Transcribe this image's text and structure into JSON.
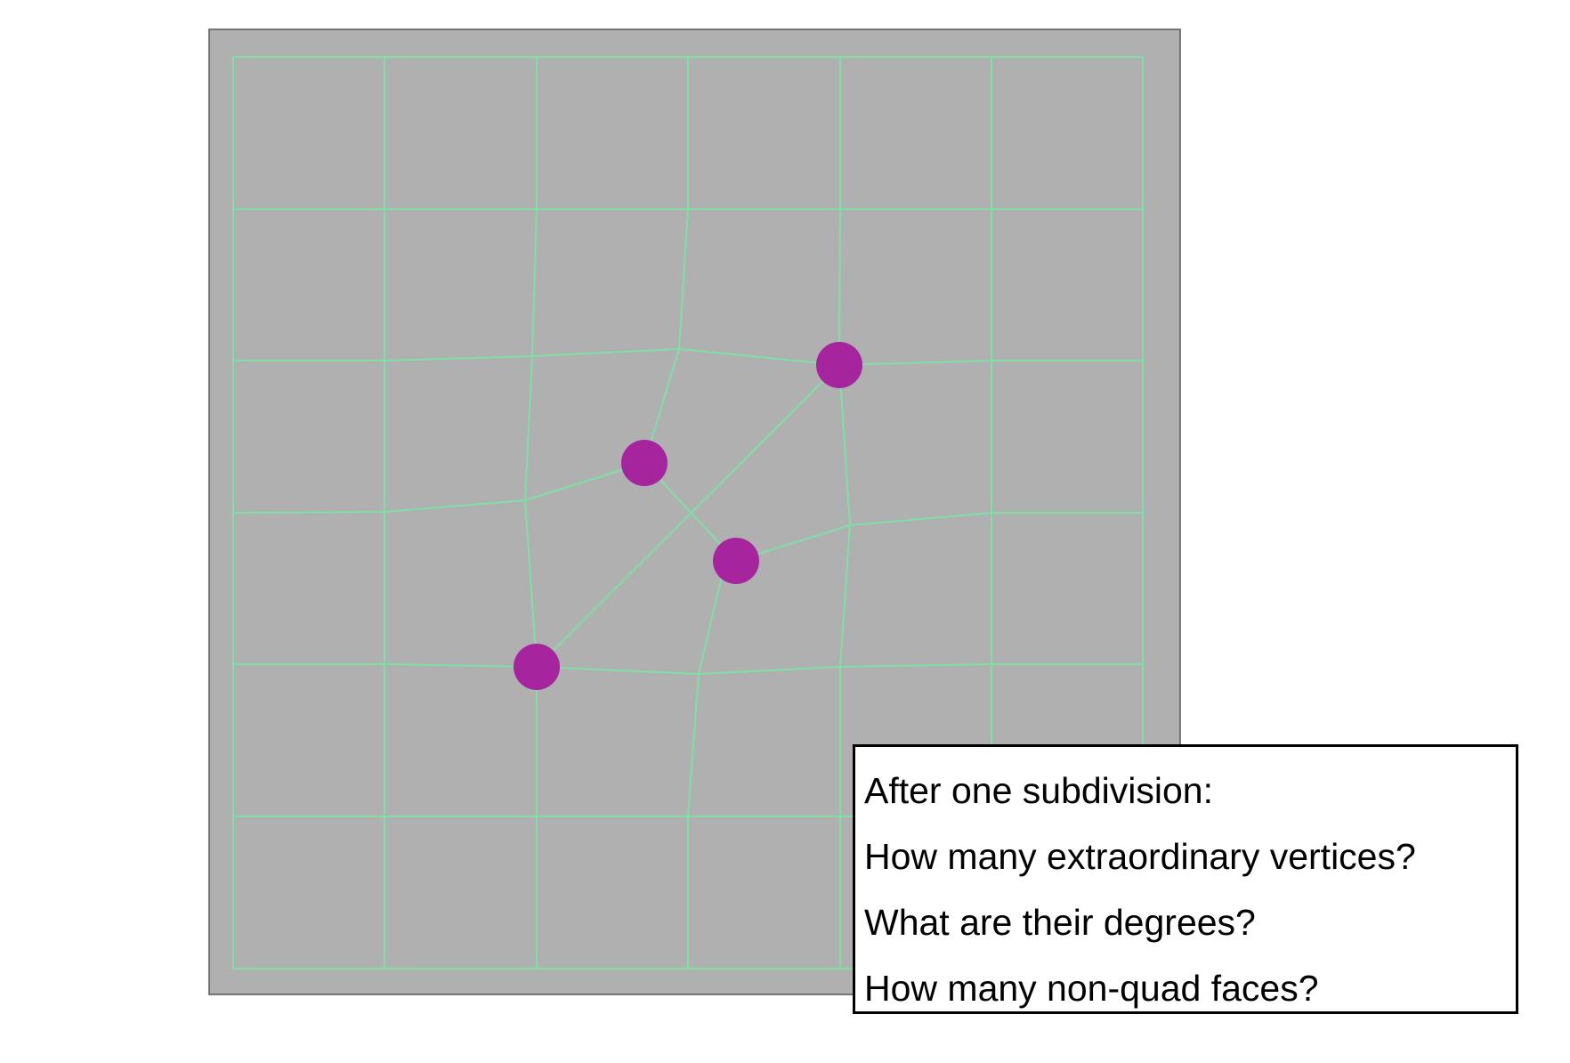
{
  "colors": {
    "background": "#ffffff",
    "viewport": "#b0b0b0",
    "viewport_border": "#555555",
    "mesh_edge": "#7fe0a6",
    "extraordinary_vertex": "#a6249e"
  },
  "mesh": {
    "extraordinary_vertex_count": 4
  },
  "question_box": {
    "lines": [
      "After one subdivision:",
      "How many extraordinary vertices?",
      "What are their degrees?",
      "How many non-quad faces?"
    ]
  }
}
